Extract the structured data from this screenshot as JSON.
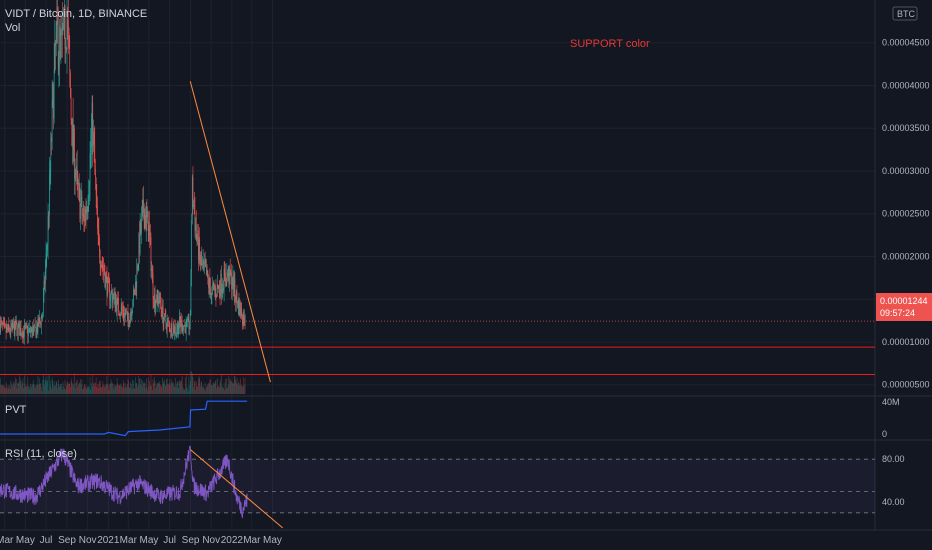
{
  "header": {
    "symbol_line": "VIDT / Bitcoin, 1D, BINANCE",
    "vol_label": "Vol"
  },
  "annotation": {
    "text": "SUPPORT color"
  },
  "price_axis": {
    "currency": "BTC",
    "ticks": [
      {
        "label": "0.00004500",
        "value": 4.5e-05
      },
      {
        "label": "0.00004000",
        "value": 4e-05
      },
      {
        "label": "0.00003500",
        "value": 3.5e-05
      },
      {
        "label": "0.00003000",
        "value": 3e-05
      },
      {
        "label": "0.00002500",
        "value": 2.5e-05
      },
      {
        "label": "0.00002000",
        "value": 2e-05
      },
      {
        "label": "0.00001500",
        "value": 1.5e-05
      },
      {
        "label": "0.00001000",
        "value": 1e-05
      },
      {
        "label": "0.00000500",
        "value": 5e-06
      }
    ],
    "current_price": "0.00001244",
    "countdown": "09:57:24",
    "current_value": 1.244e-05
  },
  "time_axis": {
    "ticks": [
      {
        "label": "Mar",
        "value": "2020-03-01"
      },
      {
        "label": "May",
        "value": "2020-05-01"
      },
      {
        "label": "Jul",
        "value": "2020-07-01"
      },
      {
        "label": "Sep",
        "value": "2020-09-01"
      },
      {
        "label": "Nov",
        "value": "2020-11-01"
      },
      {
        "label": "2021",
        "value": "2021-01-01"
      },
      {
        "label": "Mar",
        "value": "2021-03-01"
      },
      {
        "label": "May",
        "value": "2021-05-01"
      },
      {
        "label": "Jul",
        "value": "2021-07-01"
      },
      {
        "label": "Sep",
        "value": "2021-09-01"
      },
      {
        "label": "Nov",
        "value": "2021-11-01"
      },
      {
        "label": "2022",
        "value": "2022-01-01"
      },
      {
        "label": "Mar",
        "value": "2022-03-01"
      },
      {
        "label": "May",
        "value": "2022-05-01"
      }
    ]
  },
  "pvt": {
    "label": "PVT",
    "axis_ticks": [
      {
        "label": "40M",
        "value": 40
      },
      {
        "label": "0",
        "value": 0
      }
    ]
  },
  "rsi": {
    "label": "RSI (11, close)",
    "axis_ticks": [
      {
        "label": "80.00",
        "value": 80
      },
      {
        "label": "40.00",
        "value": 40
      }
    ]
  },
  "colors": {
    "background": "#131722",
    "up": "#26a69a",
    "down": "#ef5350",
    "support": "#e91e1e",
    "trendline": "#ff8a3d",
    "pvt_line": "#2962ff",
    "rsi_line": "#7e57c2",
    "rsi_band": "#7e57c2",
    "text": "#b2b5be",
    "price_tag": "#ef5350"
  },
  "chart_data": [
    {
      "type": "line",
      "title": "VIDT / Bitcoin, 1D, BINANCE",
      "description_series": "approximate daily close (candlestick chart)",
      "x": [
        "2020-02-15",
        "2020-03-01",
        "2020-04-01",
        "2020-05-01",
        "2020-06-01",
        "2020-06-20",
        "2020-07-05",
        "2020-07-20",
        "2020-08-01",
        "2020-08-15",
        "2020-09-01",
        "2020-09-15",
        "2020-10-01",
        "2020-10-20",
        "2020-11-01",
        "2020-11-15",
        "2020-12-01",
        "2020-12-15",
        "2021-01-01",
        "2021-01-20",
        "2021-02-01",
        "2021-02-15",
        "2021-03-01",
        "2021-03-20",
        "2021-04-01",
        "2021-04-15",
        "2021-05-01",
        "2021-05-15",
        "2021-06-01",
        "2021-06-15",
        "2021-07-01",
        "2021-07-20",
        "2021-08-01",
        "2021-08-20",
        "2021-08-31",
        "2021-09-05",
        "2021-09-20",
        "2021-10-01",
        "2021-10-15",
        "2021-11-01",
        "2021-11-20",
        "2021-12-05",
        "2021-12-20",
        "2022-01-01",
        "2022-01-15",
        "2022-02-01",
        "2022-02-10"
      ],
      "series": [
        {
          "values": [
            1.22e-05,
            1.12e-05,
            1.16e-05,
            1.12e-05,
            1.13e-05,
            1.3e-05,
            2.2e-05,
            3.7e-05,
            4.6e-05,
            4.4e-05,
            4.8e-05,
            3.5e-05,
            2.8e-05,
            2.4e-05,
            2.7e-05,
            3.6e-05,
            2.2e-05,
            1.9e-05,
            1.6e-05,
            1.5e-05,
            1.4e-05,
            1.35e-05,
            1.25e-05,
            1.58e-05,
            2.1e-05,
            2.55e-05,
            2.3e-05,
            1.52e-05,
            1.5e-05,
            1.25e-05,
            1.18e-05,
            1.15e-05,
            1.22e-05,
            1.18e-05,
            1.22e-05,
            2.8e-05,
            2.2e-05,
            1.9e-05,
            1.8e-05,
            1.58e-05,
            1.62e-05,
            1.72e-05,
            1.78e-05,
            1.72e-05,
            1.5e-05,
            1.3e-05,
            1.24e-05
          ]
        }
      ],
      "support_levels": [
        9.4e-06,
        6.2e-06
      ],
      "trendline": {
        "from": {
          "x": "2021-08-31",
          "y": 4.05e-05
        },
        "to": {
          "x": "2022-04-25",
          "y": 5.3e-06
        }
      },
      "ylim": [
        3.8e-06,
        5e-05
      ],
      "ylabel": "BTC"
    },
    {
      "type": "line",
      "title": "PVT",
      "x": [
        "2020-02-15",
        "2020-12-20",
        "2021-01-01",
        "2021-02-20",
        "2021-03-01",
        "2021-06-01",
        "2021-08-30",
        "2021-09-01",
        "2021-10-15",
        "2021-10-20",
        "2022-02-15"
      ],
      "series": [
        {
          "name": "PVT",
          "values": [
            0,
            0,
            2,
            -2,
            3,
            5,
            9,
            30,
            31,
            41,
            41
          ]
        }
      ],
      "ylim": [
        -5,
        45
      ]
    },
    {
      "type": "line",
      "title": "RSI (11, close)",
      "x": [
        "2020-02-15",
        "2020-04-01",
        "2020-06-01",
        "2020-07-20",
        "2020-08-20",
        "2020-10-01",
        "2020-12-01",
        "2021-02-01",
        "2021-04-01",
        "2021-06-01",
        "2021-08-01",
        "2021-08-31",
        "2021-09-10",
        "2021-10-20",
        "2021-12-01",
        "2021-12-20",
        "2022-01-15",
        "2022-02-01",
        "2022-02-15"
      ],
      "series": [
        {
          "name": "RSI",
          "values": [
            52,
            48,
            45,
            70,
            86,
            55,
            60,
            45,
            58,
            45,
            50,
            90,
            55,
            48,
            70,
            80,
            45,
            33,
            42
          ]
        }
      ],
      "levels": [
        80,
        50,
        30
      ],
      "trendline": {
        "from": {
          "x": "2021-08-31",
          "y": 89
        },
        "to": {
          "x": "2022-05-31",
          "y": 16
        }
      },
      "ylim": [
        14,
        96
      ]
    }
  ]
}
